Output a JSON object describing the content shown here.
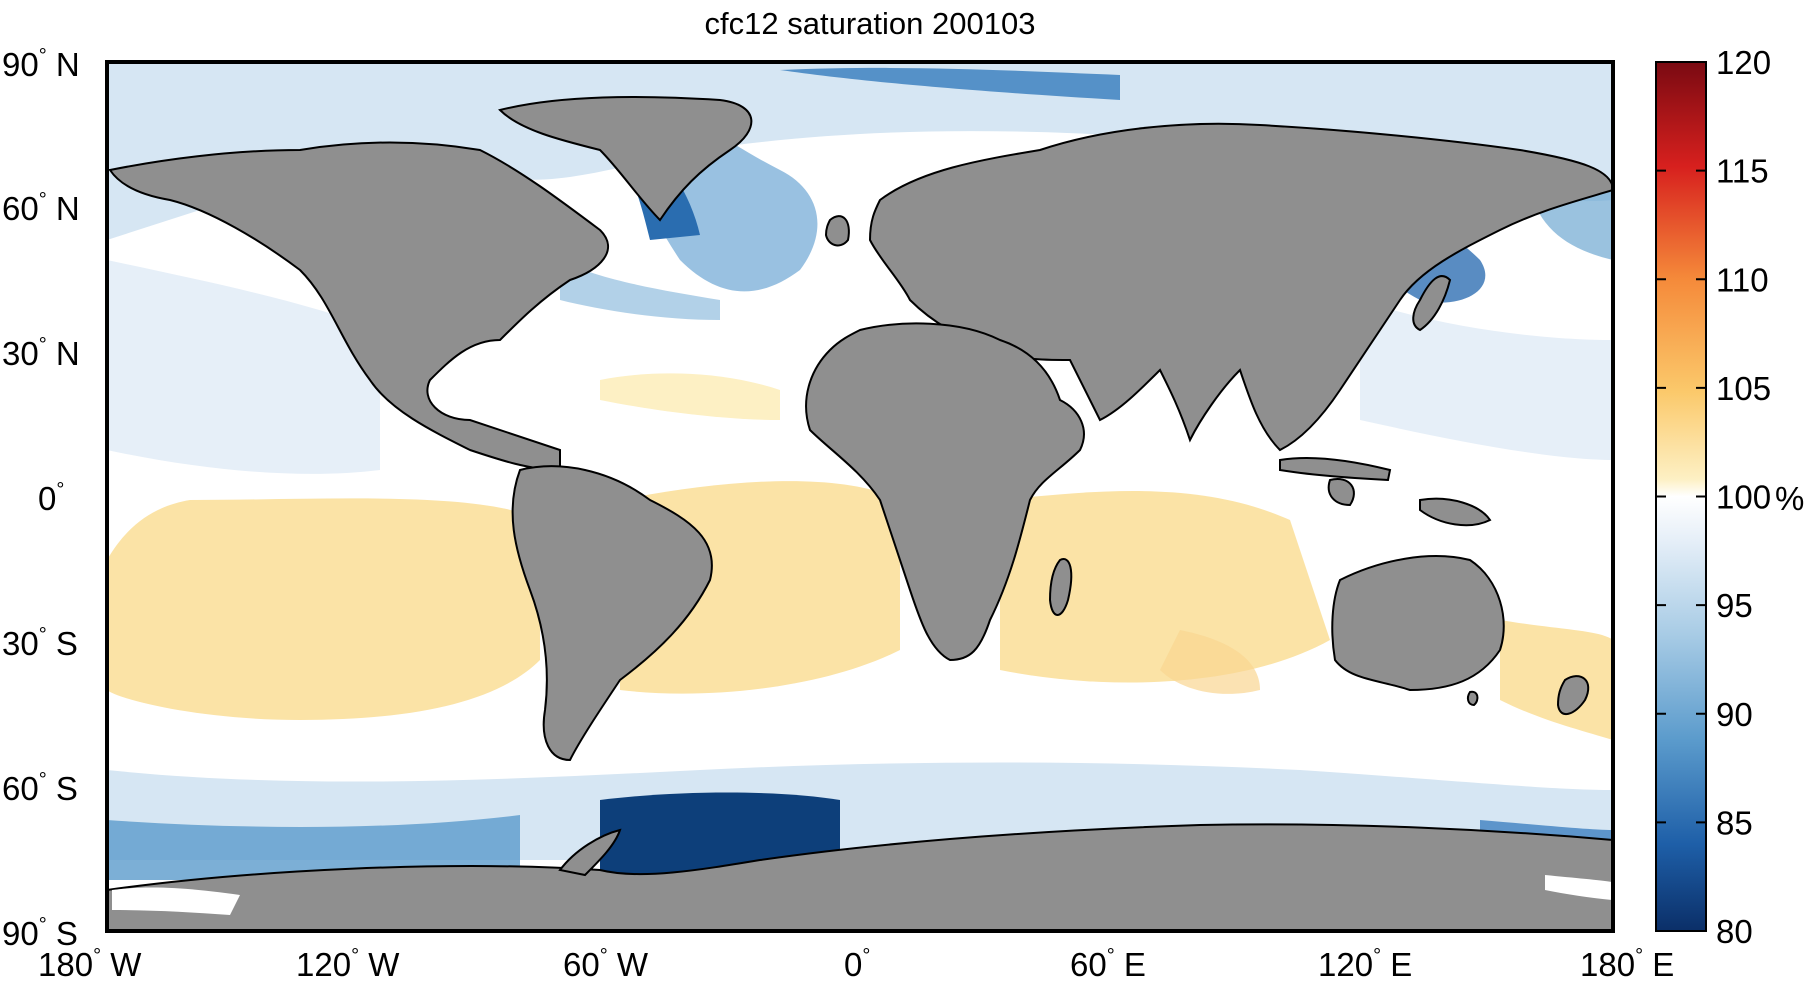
{
  "title": "cfc12 saturation 200103",
  "lat_labels": [
    {
      "value": "90",
      "hem": "N"
    },
    {
      "value": "60",
      "hem": "N"
    },
    {
      "value": "30",
      "hem": "N"
    },
    {
      "value": "0",
      "hem": ""
    },
    {
      "value": "30",
      "hem": "S"
    },
    {
      "value": "60",
      "hem": "S"
    },
    {
      "value": "90",
      "hem": "S"
    }
  ],
  "lon_labels": [
    {
      "value": "180",
      "hem": "W"
    },
    {
      "value": "120",
      "hem": "W"
    },
    {
      "value": "60",
      "hem": "W"
    },
    {
      "value": "0",
      "hem": ""
    },
    {
      "value": "60",
      "hem": "E"
    },
    {
      "value": "120",
      "hem": "E"
    },
    {
      "value": "180",
      "hem": "E"
    }
  ],
  "degree_symbol": "°",
  "colorbar": {
    "min": 80,
    "max": 120,
    "ticks": [
      "120",
      "115",
      "110",
      "105",
      "100",
      "95",
      "90",
      "85",
      "80"
    ],
    "unit": "%"
  },
  "colors": {
    "land": "#8f8f8f",
    "neutral_ocean": "#ffffff",
    "supersaturated_ocean": "#fbe3a6",
    "undersaturated_light": "#d6e6f3",
    "undersaturated_mid": "#6fa8d2",
    "undersaturated_deep": "#0d3f7a"
  }
}
